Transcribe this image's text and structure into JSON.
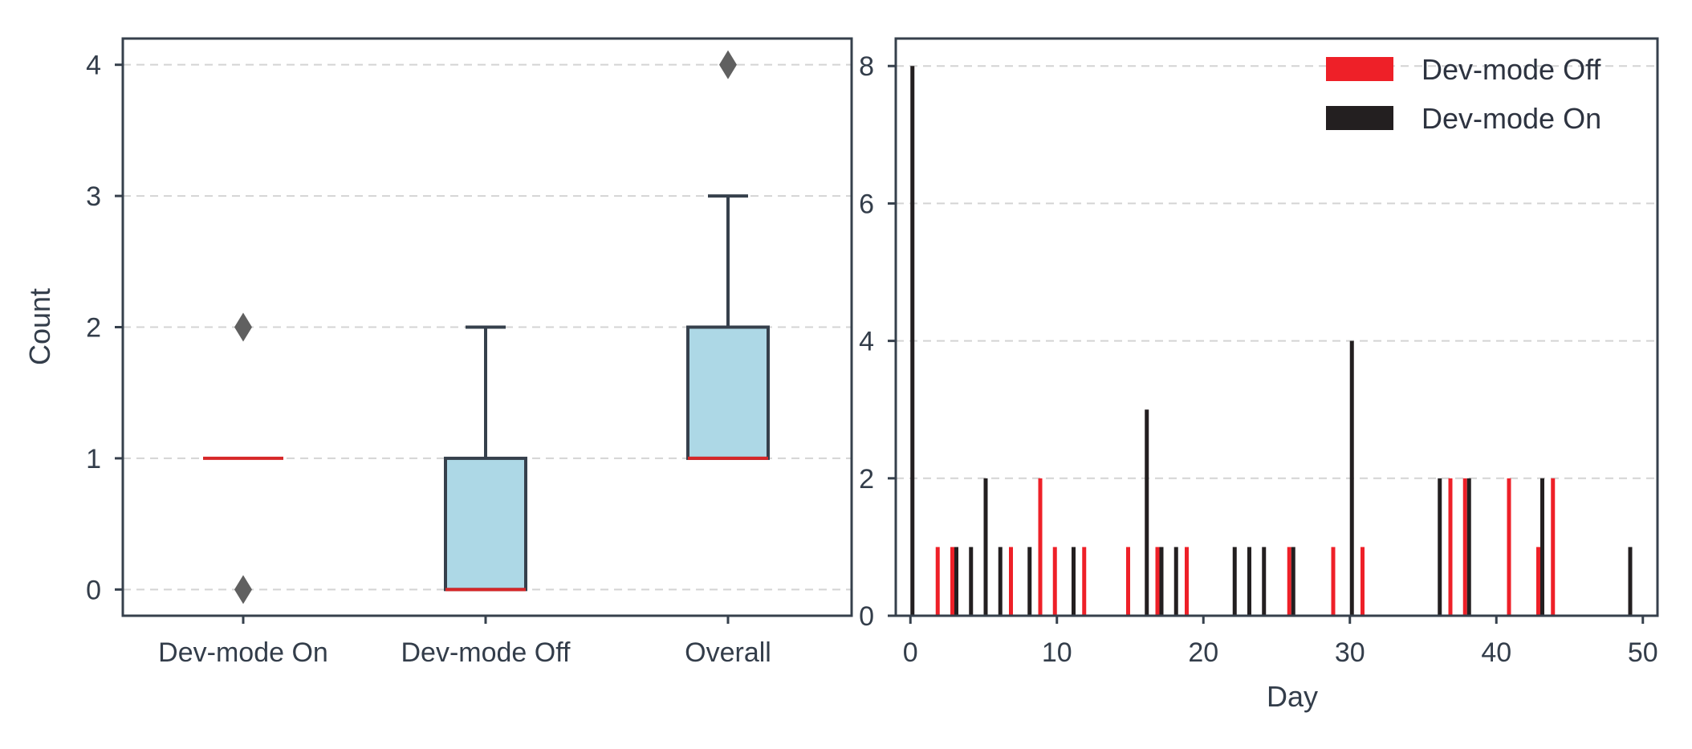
{
  "chart_data": [
    {
      "type": "box",
      "title": "",
      "xlabel": "",
      "ylabel": "Count",
      "categories": [
        "Dev-mode On",
        "Dev-mode Off",
        "Overall"
      ],
      "yticks": [
        0,
        1,
        2,
        3,
        4
      ],
      "ylim": [
        -0.2,
        4.2
      ],
      "grid": "horizontal dashed",
      "boxes": [
        {
          "name": "Dev-mode On",
          "q1": 1,
          "median": 1,
          "q3": 1,
          "whisker_low": 1,
          "whisker_high": 1,
          "outliers": [
            0,
            2
          ]
        },
        {
          "name": "Dev-mode Off",
          "q1": 0,
          "median": 0,
          "q3": 1,
          "whisker_low": 0,
          "whisker_high": 2,
          "outliers": []
        },
        {
          "name": "Overall",
          "q1": 1,
          "median": 1,
          "q3": 2,
          "whisker_low": 1,
          "whisker_high": 3,
          "outliers": [
            4
          ]
        }
      ],
      "colors": {
        "box_fill": "#add8e6",
        "median": "#d62728",
        "line": "#36404c",
        "outlier": "#606060"
      }
    },
    {
      "type": "bar",
      "title": "",
      "xlabel": "Day",
      "ylabel": "",
      "xticks": [
        0,
        10,
        20,
        30,
        40,
        50
      ],
      "yticks": [
        0,
        2,
        4,
        6,
        8
      ],
      "xlim": [
        -1,
        51
      ],
      "ylim": [
        0,
        8.4
      ],
      "grid": "horizontal dashed",
      "legend": "top-right",
      "series": [
        {
          "name": "Dev-mode Off",
          "color": "#ee2028",
          "x": [
            2,
            3,
            7,
            9,
            10,
            12,
            15,
            17,
            19,
            26,
            29,
            31,
            37,
            38,
            41,
            43,
            44
          ],
          "values": [
            1,
            1,
            1,
            2,
            1,
            1,
            1,
            1,
            1,
            1,
            1,
            1,
            2,
            2,
            2,
            1,
            2
          ]
        },
        {
          "name": "Dev-mode On",
          "color": "#231f20",
          "x": [
            0,
            3,
            4,
            5,
            6,
            8,
            11,
            16,
            17,
            18,
            22,
            23,
            24,
            26,
            30,
            36,
            38,
            43,
            49
          ],
          "values": [
            8,
            1,
            1,
            2,
            1,
            1,
            1,
            3,
            1,
            1,
            1,
            1,
            1,
            1,
            4,
            2,
            2,
            2,
            1
          ]
        }
      ]
    }
  ]
}
